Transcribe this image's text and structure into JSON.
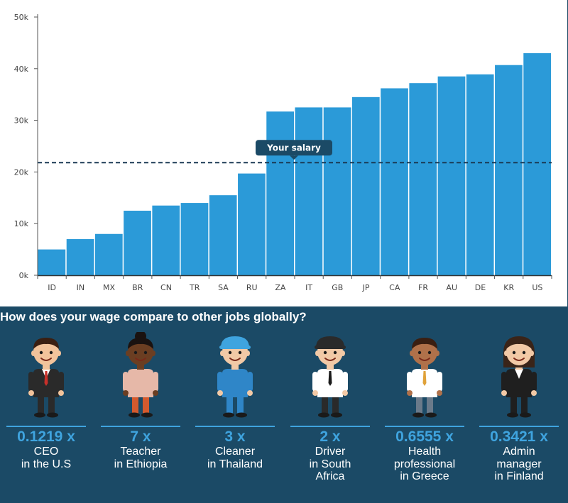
{
  "chart_data": {
    "type": "bar",
    "categories": [
      "ID",
      "IN",
      "MX",
      "BR",
      "CN",
      "TR",
      "SA",
      "RU",
      "ZA",
      "IT",
      "GB",
      "JP",
      "CA",
      "FR",
      "AU",
      "DE",
      "KR",
      "US"
    ],
    "values": [
      5000,
      7000,
      8000,
      12500,
      13500,
      14000,
      15500,
      19700,
      31700,
      32500,
      32500,
      34500,
      36200,
      37200,
      38500,
      38900,
      40700,
      43000
    ],
    "ylim": [
      0,
      50000
    ],
    "y_ticks": [
      0,
      10000,
      20000,
      30000,
      40000,
      50000
    ],
    "y_tick_labels": [
      "0k",
      "10k",
      "20k",
      "30k",
      "40k",
      "50k"
    ],
    "reference_line": {
      "value": 21800,
      "label": "Your salary"
    },
    "bar_color": "#2b9ad8",
    "grid": false,
    "legend": "none"
  },
  "compare": {
    "title": "How does your wage compare to other jobs globally?",
    "background": "#1b4a66",
    "accent": "#3fa4df",
    "jobs": [
      {
        "avatar": "ceo-avatar",
        "ratio": "0.1219 x",
        "line1": "CEO",
        "line2": "in the U.S",
        "line3": ""
      },
      {
        "avatar": "teacher-avatar",
        "ratio": "7 x",
        "line1": "Teacher",
        "line2": "in Ethiopia",
        "line3": ""
      },
      {
        "avatar": "cleaner-avatar",
        "ratio": "3 x",
        "line1": "Cleaner",
        "line2": "in Thailand",
        "line3": ""
      },
      {
        "avatar": "driver-avatar",
        "ratio": "2 x",
        "line1": "Driver",
        "line2": "in South",
        "line3": "Africa"
      },
      {
        "avatar": "health-professional-avatar",
        "ratio": "0.6555 x",
        "line1": "Health",
        "line2": "professional",
        "line3": "in Greece"
      },
      {
        "avatar": "admin-manager-avatar",
        "ratio": "0.3421 x",
        "line1": "Admin",
        "line2": "manager",
        "line3": "in Finland"
      }
    ]
  }
}
